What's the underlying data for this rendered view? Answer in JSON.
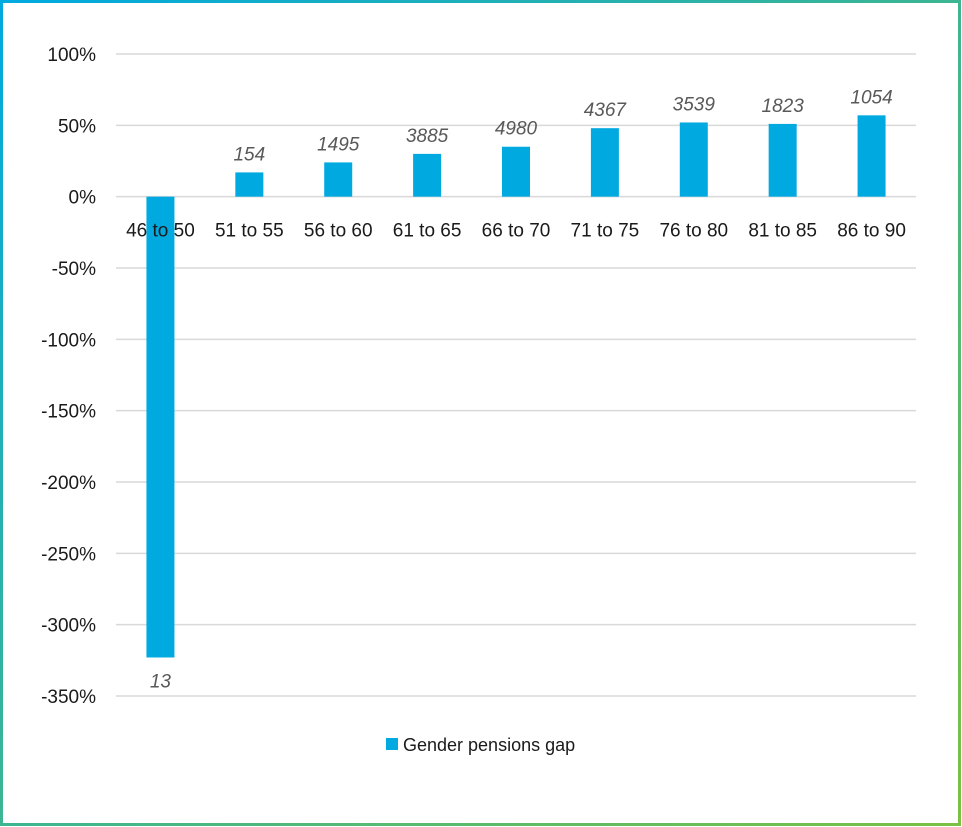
{
  "chart_data": {
    "type": "bar",
    "categories": [
      "46 to 50",
      "51 to 55",
      "56 to 60",
      "61 to 65",
      "66 to 70",
      "71 to 75",
      "76 to 80",
      "81 to 85",
      "86 to 90"
    ],
    "series": [
      {
        "name": "Gender pensions gap",
        "values": [
          -323,
          17,
          24,
          30,
          35,
          48,
          52,
          51,
          57
        ],
        "data_labels": [
          "13",
          "154",
          "1495",
          "3885",
          "4980",
          "4367",
          "3539",
          "1823",
          "1054"
        ],
        "color": "#00A9E0"
      }
    ],
    "ylim": [
      -350,
      100
    ],
    "yticks": [
      100,
      50,
      0,
      -50,
      -100,
      -150,
      -200,
      -250,
      -300,
      -350
    ],
    "ytick_labels": [
      "100%",
      "50%",
      "0%",
      "-50%",
      "-100%",
      "-150%",
      "-200%",
      "-250%",
      "-300%",
      "-350%"
    ],
    "grid": true,
    "legend_position": "bottom",
    "border_color_start": "#00A9E0",
    "border_color_end": "#7AC143",
    "gridline_color": "#D9D9D9"
  }
}
